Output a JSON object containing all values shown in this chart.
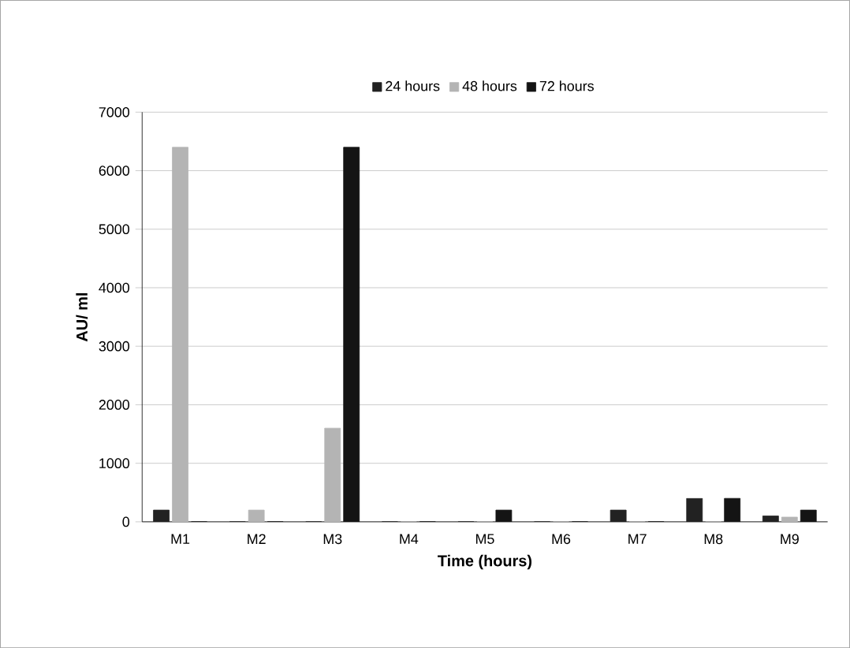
{
  "chart_data": {
    "type": "bar",
    "xlabel": "Time (hours)",
    "ylabel": "AU/ ml",
    "categories": [
      "M1",
      "M2",
      "M3",
      "M4",
      "M5",
      "M6",
      "M7",
      "M8",
      "M9"
    ],
    "series": [
      {
        "name": "24 hours",
        "color": "#222222",
        "values": [
          200,
          0,
          0,
          0,
          0,
          0,
          200,
          400,
          100
        ]
      },
      {
        "name": "48 hours",
        "color": "#b4b4b4",
        "values": [
          6400,
          200,
          1600,
          0,
          0,
          0,
          0,
          0,
          80
        ]
      },
      {
        "name": "72 hours",
        "color": "#141414",
        "values": [
          0,
          0,
          6400,
          0,
          200,
          0,
          0,
          400,
          200
        ]
      }
    ],
    "ylim": [
      0,
      7000
    ],
    "yticks": [
      0,
      1000,
      2000,
      3000,
      4000,
      5000,
      6000,
      7000
    ],
    "grid": "y",
    "legend": "top"
  }
}
